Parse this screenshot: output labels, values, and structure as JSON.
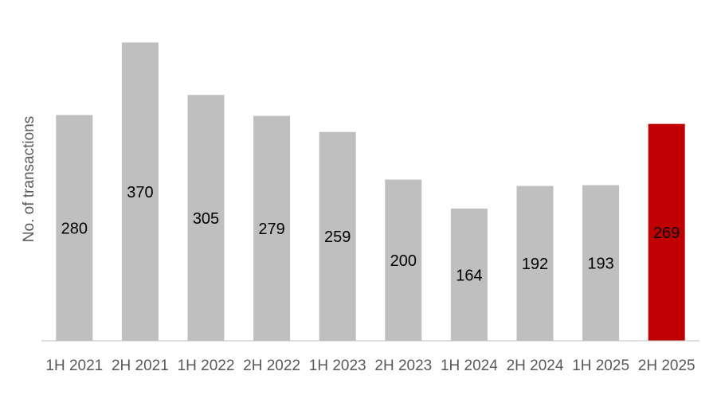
{
  "chart_data": {
    "type": "bar",
    "ylabel": "No. of transactions",
    "categories": [
      "1H 2021",
      "2H 2021",
      "1H 2022",
      "2H 2022",
      "1H 2023",
      "2H 2023",
      "1H 2024",
      "2H 2024",
      "1H 2025",
      "2H 2025"
    ],
    "values": [
      280,
      370,
      305,
      279,
      259,
      200,
      164,
      192,
      193,
      269
    ],
    "colors": [
      "#bfbfbf",
      "#bfbfbf",
      "#bfbfbf",
      "#bfbfbf",
      "#bfbfbf",
      "#bfbfbf",
      "#bfbfbf",
      "#bfbfbf",
      "#bfbfbf",
      "#c00000"
    ],
    "ylim": [
      0,
      400
    ]
  }
}
